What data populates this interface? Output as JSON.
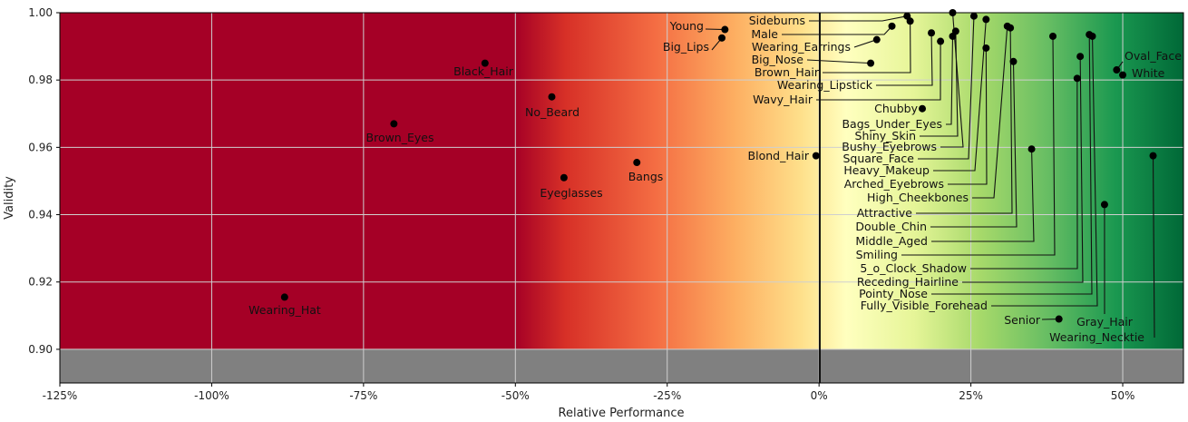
{
  "chart_data": {
    "type": "scatter",
    "title": "",
    "xlabel": "Relative Performance",
    "ylabel": "Validity",
    "xlim": [
      -125,
      60
    ],
    "ylim": [
      0.89,
      1.0
    ],
    "x_ticks": [
      -125,
      -100,
      -75,
      -50,
      -25,
      0,
      25,
      50
    ],
    "x_tick_labels": [
      "-125%",
      "-100%",
      "-75%",
      "-50%",
      "-25%",
      "0%",
      "25%",
      "50%"
    ],
    "y_ticks": [
      0.9,
      0.92,
      0.94,
      0.96,
      0.98,
      1.0
    ],
    "y_tick_labels": [
      "0.90",
      "0.92",
      "0.94",
      "0.96",
      "0.98",
      "1.00"
    ],
    "grid": true,
    "invalid_region_below": 0.9,
    "colors": {
      "negative": "#a50026",
      "mid_orange": "#f46d43",
      "neutral": "#ffffbf",
      "light_green": "#a6d96a",
      "positive": "#006837",
      "invalid_region": "#808080",
      "points": "#000000"
    },
    "points": [
      {
        "label": "Wearing_Hat",
        "x": -88,
        "y": 0.9155
      },
      {
        "label": "Brown_Eyes",
        "x": -70,
        "y": 0.967
      },
      {
        "label": "Black_Hair",
        "x": -55,
        "y": 0.985
      },
      {
        "label": "No_Beard",
        "x": -44,
        "y": 0.975
      },
      {
        "label": "Eyeglasses",
        "x": -42,
        "y": 0.951
      },
      {
        "label": "Bangs",
        "x": -30,
        "y": 0.9555
      },
      {
        "label": "Young",
        "x": -15.5,
        "y": 0.995
      },
      {
        "label": "Big_Lips",
        "x": -16,
        "y": 0.9925
      },
      {
        "label": "Blond_Hair",
        "x": -0.5,
        "y": 0.9575
      },
      {
        "label": "Sideburns",
        "x": 14.5,
        "y": 0.999
      },
      {
        "label": "Male",
        "x": 12,
        "y": 0.996
      },
      {
        "label": "Wearing_Earrings",
        "x": 9.5,
        "y": 0.992
      },
      {
        "label": "Big_Nose",
        "x": 8.5,
        "y": 0.985
      },
      {
        "label": "Brown_Hair",
        "x": 15,
        "y": 0.9975
      },
      {
        "label": "Wearing_Lipstick",
        "x": 18.5,
        "y": 0.994
      },
      {
        "label": "Wavy_Hair",
        "x": 20,
        "y": 0.9915
      },
      {
        "label": "Chubby",
        "x": 17,
        "y": 0.9715
      },
      {
        "label": "Bags_Under_Eyes",
        "x": 22,
        "y": 0.993
      },
      {
        "label": "Shiny_Skin",
        "x": 22.5,
        "y": 0.9945
      },
      {
        "label": "Bushy_Eyebrows",
        "x": 22,
        "y": 1.0
      },
      {
        "label": "Square_Face",
        "x": 25.5,
        "y": 0.999
      },
      {
        "label": "Heavy_Makeup",
        "x": 27.5,
        "y": 0.998
      },
      {
        "label": "Arched_Eyebrows",
        "x": 27.5,
        "y": 0.9895
      },
      {
        "label": "High_Cheekbones",
        "x": 31,
        "y": 0.996
      },
      {
        "label": "Attractive",
        "x": 31.5,
        "y": 0.9955
      },
      {
        "label": "Double_Chin",
        "x": 32,
        "y": 0.9855
      },
      {
        "label": "Middle_Aged",
        "x": 35,
        "y": 0.9595
      },
      {
        "label": "Smiling",
        "x": 38.5,
        "y": 0.993
      },
      {
        "label": "5_o_Clock_Shadow",
        "x": 42.5,
        "y": 0.9805
      },
      {
        "label": "Receding_Hairline",
        "x": 43,
        "y": 0.987
      },
      {
        "label": "Pointy_Nose",
        "x": 44.5,
        "y": 0.9935
      },
      {
        "label": "Fully_Visible_Forehead",
        "x": 45,
        "y": 0.993
      },
      {
        "label": "Senior",
        "x": 39.5,
        "y": 0.909
      },
      {
        "label": "Gray_Hair",
        "x": 47,
        "y": 0.943
      },
      {
        "label": "Oval_Face",
        "x": 49,
        "y": 0.983
      },
      {
        "label": "White",
        "x": 50,
        "y": 0.9815
      },
      {
        "label": "Wearing_Necktie",
        "x": 55,
        "y": 0.9575
      }
    ]
  }
}
